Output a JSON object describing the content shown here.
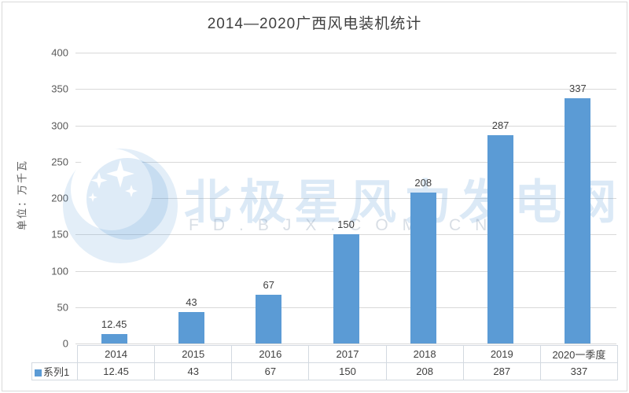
{
  "chart_data": {
    "type": "bar",
    "title": "2014—2020广西风电装机统计",
    "ylabel": "单位：万千瓦",
    "categories": [
      "2014",
      "2015",
      "2016",
      "2017",
      "2018",
      "2019",
      "2020一季度"
    ],
    "series": [
      {
        "name": "系列1",
        "values": [
          12.45,
          43,
          67,
          150,
          208,
          287,
          337
        ]
      }
    ],
    "data_labels": [
      "12.45",
      "43",
      "67",
      "150",
      "208",
      "287",
      "337"
    ],
    "ylim": [
      0,
      400
    ],
    "ytick_interval": 50,
    "grid": true,
    "legend_position": "data-table-left",
    "bar_color": "#5b9bd5"
  },
  "watermark": {
    "logo": "polaris-moon-stars-logo",
    "text": "北极星风力发电网",
    "domain": "FD.BJX.COM.CN"
  },
  "colors": {
    "bar": "#5b9bd5",
    "gridline": "#d9d9d9",
    "title_text": "#404040",
    "tick_text": "#595959",
    "table_border": "#d3d9e0",
    "watermark_blue": "#5b9bd5"
  }
}
